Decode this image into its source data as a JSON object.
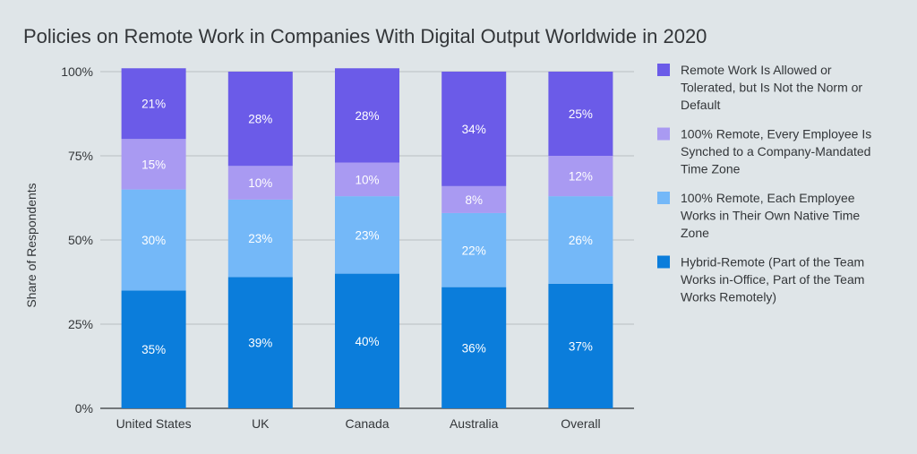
{
  "chart_data": {
    "type": "bar",
    "stacked": true,
    "title": "Policies on Remote Work in Companies With Digital Output Worldwide in 2020",
    "xlabel": "",
    "ylabel": "Share of Respondents",
    "ylim": [
      0,
      100
    ],
    "yticks": [
      "0%",
      "25%",
      "50%",
      "75%",
      "100%"
    ],
    "ytick_values": [
      0,
      25,
      50,
      75,
      100
    ],
    "grid": true,
    "legend_position": "right",
    "categories": [
      "United States",
      "UK",
      "Canada",
      "Australia",
      "Overall"
    ],
    "series": [
      {
        "name": "Hybrid-Remote (Part of the Team Works in-Office, Part of the Team Works Remotely)",
        "legend_lines": [
          "Hybrid-Remote (Part of the Team",
          "Works in-Office, Part of the Team",
          "Works Remotely)"
        ],
        "color": "#0b7ddb",
        "values": [
          35,
          39,
          40,
          36,
          37
        ],
        "labels": [
          "35%",
          "39%",
          "40%",
          "36%",
          "37%"
        ]
      },
      {
        "name": "100% Remote, Each Employee Works in Their Own Native Time Zone",
        "legend_lines": [
          "100% Remote, Each Employee",
          "Works in Their Own Native Time",
          "Zone"
        ],
        "color": "#74b8f8",
        "values": [
          30,
          23,
          23,
          22,
          26
        ],
        "labels": [
          "30%",
          "23%",
          "23%",
          "22%",
          "26%"
        ]
      },
      {
        "name": "100% Remote, Every Employee Is Synched to a Company-Mandated Time Zone",
        "legend_lines": [
          "100% Remote, Every Employee Is",
          "Synched to a Company-Mandated",
          "Time Zone"
        ],
        "color": "#a99af2",
        "values": [
          15,
          10,
          10,
          8,
          12
        ],
        "labels": [
          "15%",
          "10%",
          "10%",
          "8%",
          "12%"
        ]
      },
      {
        "name": "Remote Work Is Allowed or Tolerated, but Is Not the Norm or Default",
        "legend_lines": [
          "Remote Work Is Allowed or",
          "Tolerated, but Is Not the Norm or",
          "Default"
        ],
        "color": "#6b5be8",
        "values": [
          21,
          28,
          28,
          34,
          25
        ],
        "labels": [
          "21%",
          "28%",
          "28%",
          "34%",
          "25%"
        ]
      }
    ]
  }
}
